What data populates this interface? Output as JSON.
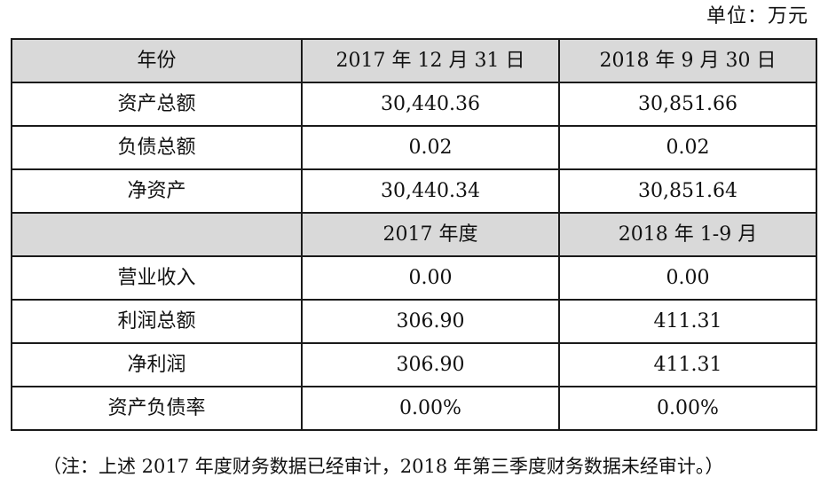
{
  "unit_label": "单位：万元",
  "header1": {
    "col1": "年份",
    "col2": "2017 年 12 月 31 日",
    "col3": "2018 年 9 月 30 日"
  },
  "balance_rows": [
    {
      "label": "资产总额",
      "v2017": "30,440.36",
      "v2018": "30,851.66"
    },
    {
      "label": "负债总额",
      "v2017": "0.02",
      "v2018": "0.02"
    },
    {
      "label": "净资产",
      "v2017": "30,440.34",
      "v2018": "30,851.64"
    }
  ],
  "header2": {
    "col1": "",
    "col2": "2017 年度",
    "col3": "2018 年 1-9 月"
  },
  "income_rows": [
    {
      "label": "营业收入",
      "v2017": "0.00",
      "v2018": "0.00"
    },
    {
      "label": "利润总额",
      "v2017": "306.90",
      "v2018": "411.31"
    },
    {
      "label": "净利润",
      "v2017": "306.90",
      "v2018": "411.31"
    },
    {
      "label": "资产负债率",
      "v2017": "0.00%",
      "v2018": "0.00%"
    }
  ],
  "note": "（注：上述 2017 年度财务数据已经审计，2018 年第三季度财务数据未经审计。）"
}
